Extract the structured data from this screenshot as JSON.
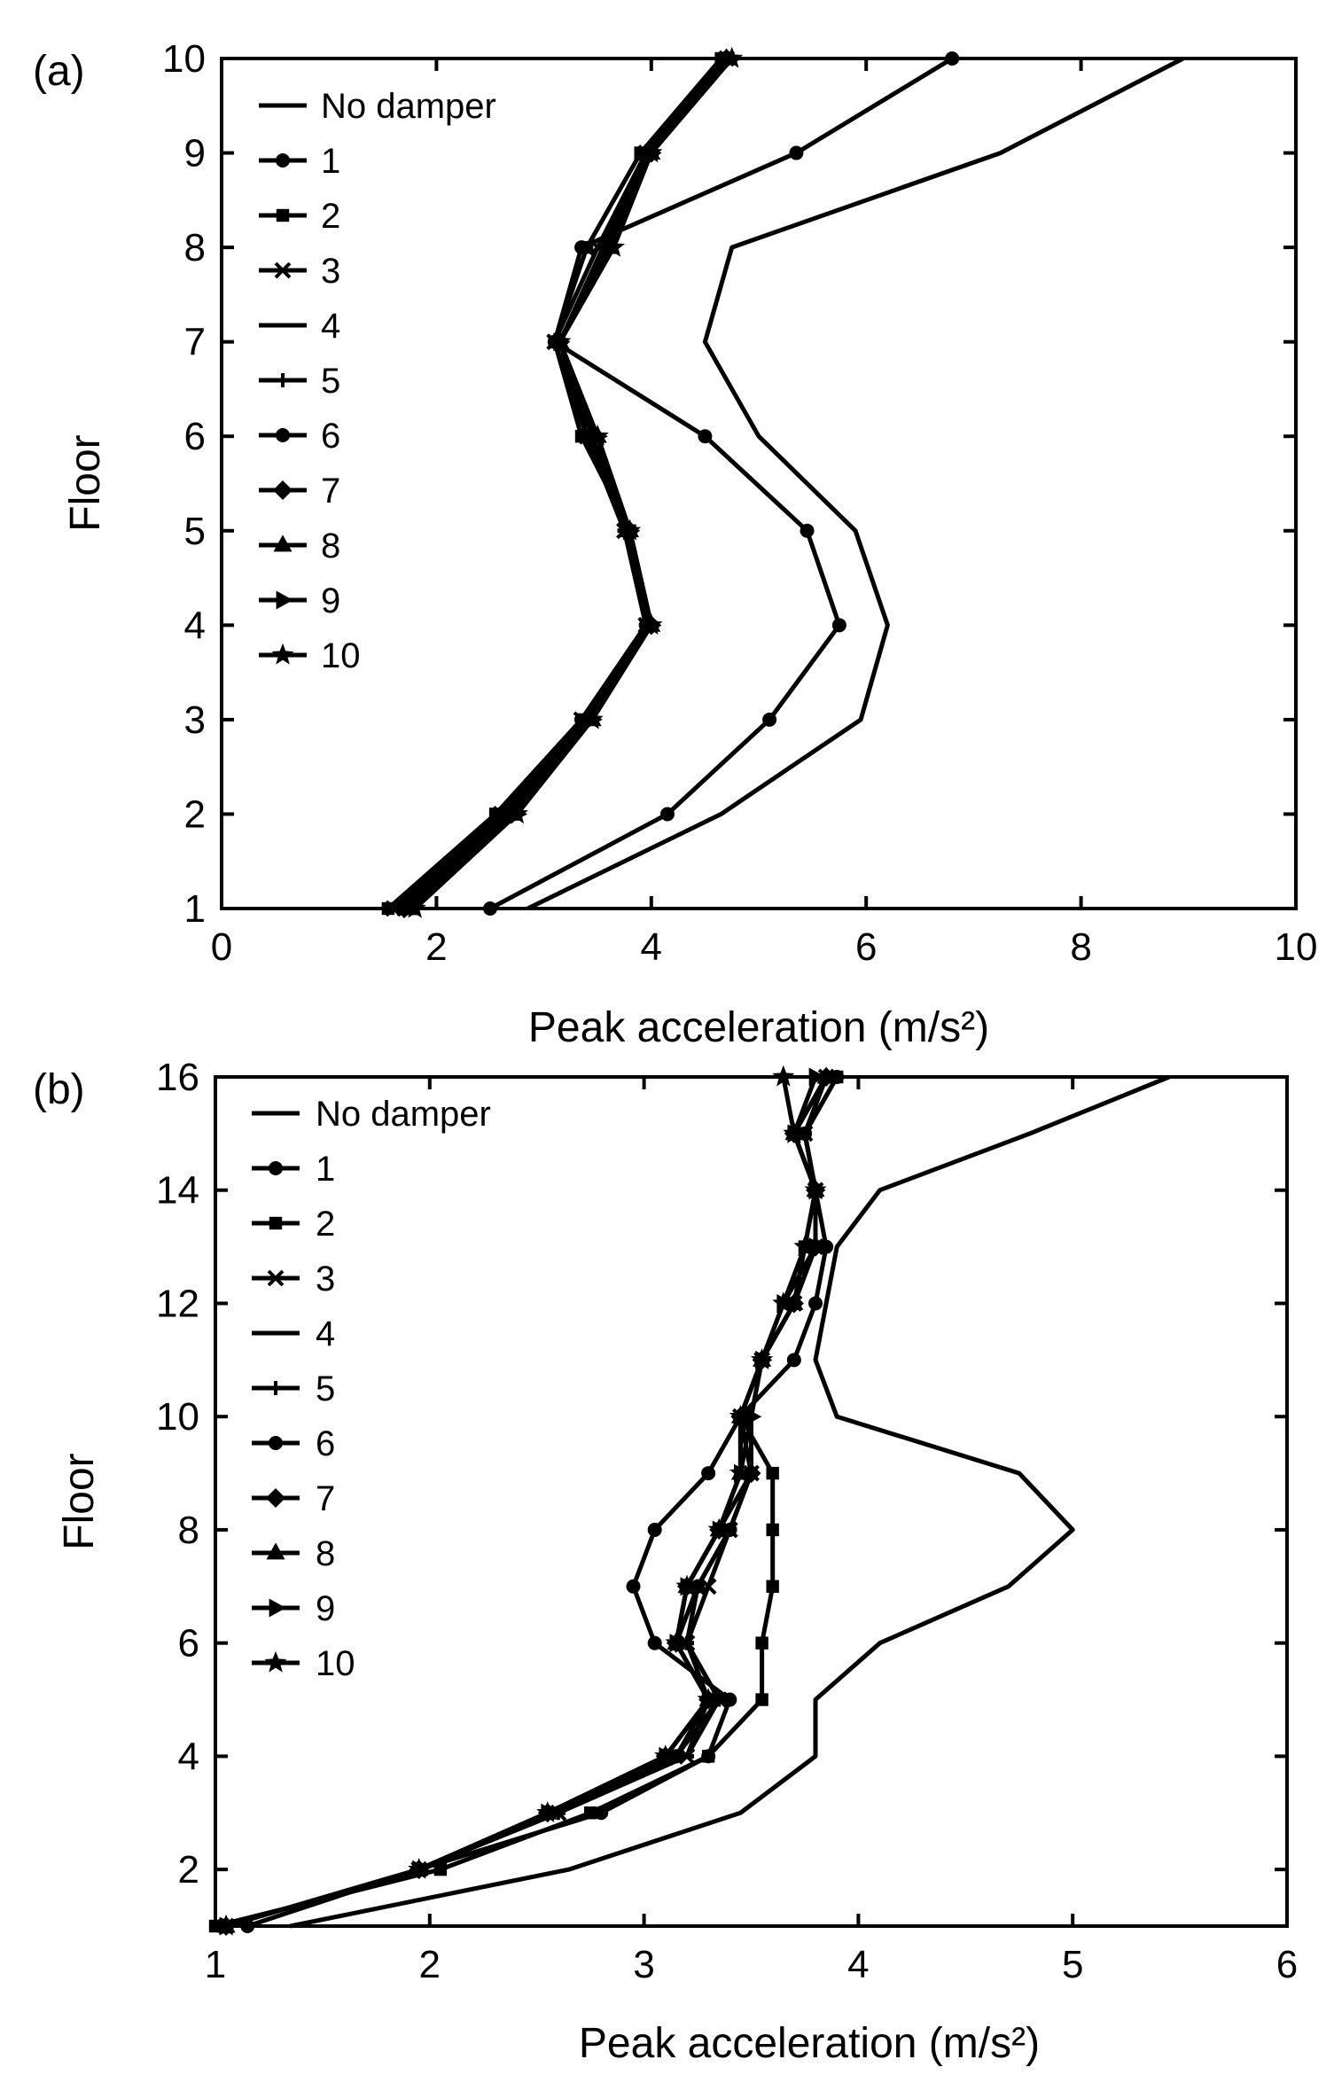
{
  "chart_data": [
    {
      "type": "line",
      "panel_label": "(a)",
      "title": "",
      "xlabel": "Peak acceleration (m/s²)",
      "ylabel": "Floor",
      "xlim": [
        0,
        10
      ],
      "ylim": [
        1,
        10
      ],
      "xticks": [
        0,
        2,
        4,
        6,
        8,
        10
      ],
      "yticks": [
        1,
        2,
        3,
        4,
        5,
        6,
        7,
        8,
        9,
        10
      ],
      "xtick_labels": [
        "0",
        "2",
        "4",
        "6",
        "8",
        "10"
      ],
      "ytick_labels": [
        "1",
        "2",
        "3",
        "4",
        "5",
        "6",
        "7",
        "8",
        "9",
        "10"
      ],
      "grid": false,
      "legend_position": "top-left",
      "y": [
        1,
        2,
        3,
        4,
        5,
        6,
        7,
        8,
        9,
        10
      ],
      "series": [
        {
          "name": "No damper",
          "marker": "none",
          "values": [
            2.85,
            4.65,
            5.95,
            6.2,
            5.9,
            5.0,
            4.5,
            4.75,
            7.25,
            8.95
          ]
        },
        {
          "name": "1",
          "marker": "circle",
          "values": [
            2.5,
            4.15,
            5.1,
            5.75,
            5.45,
            4.5,
            3.1,
            3.35,
            5.35,
            6.8
          ]
        },
        {
          "name": "2",
          "marker": "square",
          "values": [
            1.55,
            2.55,
            3.35,
            3.95,
            3.8,
            3.35,
            3.1,
            3.4,
            3.9,
            4.65
          ]
        },
        {
          "name": "3",
          "marker": "x",
          "values": [
            1.6,
            2.6,
            3.35,
            3.95,
            3.75,
            3.4,
            3.1,
            3.5,
            3.95,
            4.7
          ]
        },
        {
          "name": "4",
          "marker": "dash",
          "values": [
            1.65,
            2.6,
            3.35,
            3.95,
            3.75,
            3.4,
            3.15,
            3.55,
            3.95,
            4.7
          ]
        },
        {
          "name": "5",
          "marker": "plus",
          "values": [
            1.65,
            2.65,
            3.4,
            4.0,
            3.75,
            3.45,
            3.15,
            3.55,
            3.95,
            4.65
          ]
        },
        {
          "name": "6",
          "marker": "circle",
          "values": [
            1.7,
            2.65,
            3.4,
            4.0,
            3.8,
            3.45,
            3.15,
            3.6,
            3.95,
            4.7
          ]
        },
        {
          "name": "7",
          "marker": "diamond",
          "values": [
            1.7,
            2.7,
            3.4,
            4.0,
            3.8,
            3.45,
            3.15,
            3.6,
            4.0,
            4.7
          ]
        },
        {
          "name": "8",
          "marker": "triangle",
          "values": [
            1.75,
            2.7,
            3.45,
            4.0,
            3.8,
            3.5,
            3.15,
            3.6,
            4.0,
            4.7
          ]
        },
        {
          "name": "9",
          "marker": "triangle-right",
          "values": [
            1.75,
            2.75,
            3.45,
            4.0,
            3.8,
            3.5,
            3.15,
            3.6,
            4.0,
            4.75
          ]
        },
        {
          "name": "10",
          "marker": "star",
          "values": [
            1.8,
            2.75,
            3.45,
            4.0,
            3.8,
            3.5,
            3.15,
            3.65,
            4.0,
            4.75
          ]
        }
      ]
    },
    {
      "type": "line",
      "panel_label": "(b)",
      "title": "",
      "xlabel": "Peak acceleration (m/s²)",
      "ylabel": "Floor",
      "xlim": [
        1,
        6
      ],
      "ylim": [
        1,
        16
      ],
      "xticks": [
        1,
        2,
        3,
        4,
        5,
        6
      ],
      "yticks": [
        2,
        4,
        6,
        8,
        10,
        12,
        14,
        16
      ],
      "xtick_labels": [
        "1",
        "2",
        "3",
        "4",
        "5",
        "6"
      ],
      "ytick_labels": [
        "2",
        "4",
        "6",
        "8",
        "10",
        "12",
        "14",
        "16"
      ],
      "grid": false,
      "legend_position": "top-left",
      "y": [
        1,
        2,
        3,
        4,
        5,
        6,
        7,
        8,
        9,
        10,
        11,
        12,
        13,
        14,
        15,
        16
      ],
      "series": [
        {
          "name": "No damper",
          "marker": "none",
          "values": [
            1.35,
            2.65,
            3.45,
            3.8,
            3.8,
            4.1,
            4.7,
            5.0,
            4.75,
            3.9,
            3.8,
            3.85,
            3.9,
            4.1,
            4.8,
            5.45
          ]
        },
        {
          "name": "1",
          "marker": "circle",
          "values": [
            1.15,
            1.95,
            2.8,
            3.3,
            3.4,
            3.05,
            2.95,
            3.05,
            3.3,
            3.45,
            3.7,
            3.8,
            3.85,
            3.8,
            3.75,
            3.9
          ]
        },
        {
          "name": "2",
          "marker": "square",
          "values": [
            1.0,
            2.05,
            2.75,
            3.3,
            3.55,
            3.55,
            3.6,
            3.6,
            3.6,
            3.45,
            3.55,
            3.7,
            3.75,
            3.8,
            3.75,
            3.9
          ]
        },
        {
          "name": "3",
          "marker": "x",
          "values": [
            1.05,
            1.95,
            2.6,
            3.2,
            3.35,
            3.2,
            3.3,
            3.4,
            3.5,
            3.45,
            3.55,
            3.7,
            3.8,
            3.8,
            3.75,
            3.85
          ]
        },
        {
          "name": "4",
          "marker": "dash",
          "values": [
            1.05,
            1.95,
            2.6,
            3.2,
            3.3,
            3.2,
            3.25,
            3.4,
            3.5,
            3.45,
            3.55,
            3.7,
            3.8,
            3.8,
            3.75,
            3.85
          ]
        },
        {
          "name": "5",
          "marker": "plus",
          "values": [
            1.05,
            1.95,
            2.6,
            3.15,
            3.35,
            3.2,
            3.25,
            3.4,
            3.5,
            3.5,
            3.55,
            3.7,
            3.8,
            3.8,
            3.75,
            3.85
          ]
        },
        {
          "name": "6",
          "marker": "circle",
          "values": [
            1.05,
            1.95,
            2.55,
            3.15,
            3.3,
            3.15,
            3.25,
            3.4,
            3.5,
            3.45,
            3.55,
            3.7,
            3.8,
            3.8,
            3.7,
            3.85
          ]
        },
        {
          "name": "7",
          "marker": "diamond",
          "values": [
            1.05,
            1.95,
            2.55,
            3.1,
            3.3,
            3.15,
            3.2,
            3.35,
            3.5,
            3.45,
            3.55,
            3.7,
            3.8,
            3.8,
            3.7,
            3.85
          ]
        },
        {
          "name": "8",
          "marker": "triangle",
          "values": [
            1.05,
            1.95,
            2.55,
            3.1,
            3.3,
            3.15,
            3.2,
            3.35,
            3.45,
            3.45,
            3.55,
            3.7,
            3.8,
            3.8,
            3.7,
            3.85
          ]
        },
        {
          "name": "9",
          "marker": "triangle-right",
          "values": [
            1.05,
            1.95,
            2.55,
            3.1,
            3.3,
            3.15,
            3.2,
            3.35,
            3.45,
            3.5,
            3.55,
            3.65,
            3.8,
            3.8,
            3.7,
            3.8
          ]
        },
        {
          "name": "10",
          "marker": "star",
          "values": [
            1.05,
            1.95,
            2.55,
            3.1,
            3.3,
            3.15,
            3.2,
            3.35,
            3.45,
            3.45,
            3.55,
            3.65,
            3.75,
            3.8,
            3.7,
            3.65
          ]
        }
      ]
    }
  ]
}
